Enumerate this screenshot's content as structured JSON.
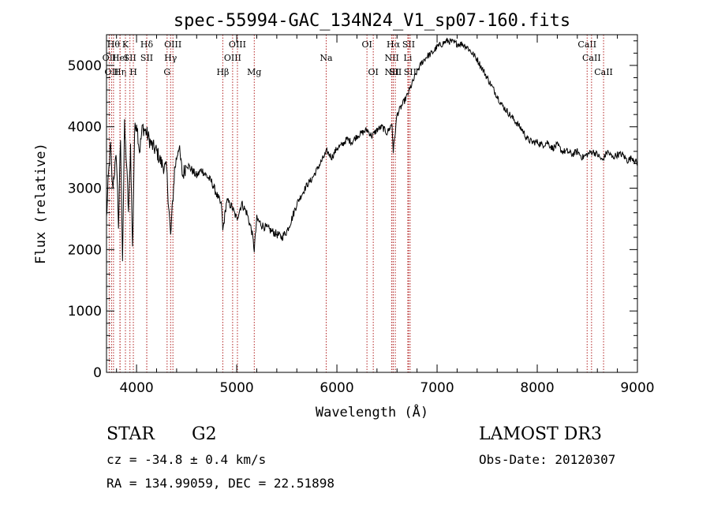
{
  "chart_data": {
    "type": "line",
    "title": "spec-55994-GAC_134N24_V1_sp07-160.fits",
    "xlabel": "Wavelength (Å)",
    "ylabel": "Flux (relative)",
    "xlim": [
      3700,
      9000
    ],
    "ylim": [
      0,
      5500
    ],
    "xticks": [
      4000,
      5000,
      6000,
      7000,
      8000,
      9000
    ],
    "yticks": [
      0,
      1000,
      2000,
      3000,
      4000,
      5000
    ],
    "grid": false,
    "series": [
      {
        "name": "flux",
        "color": "#000000",
        "x": [
          3700,
          3720,
          3740,
          3760,
          3780,
          3800,
          3820,
          3840,
          3860,
          3880,
          3900,
          3920,
          3940,
          3960,
          3980,
          4000,
          4030,
          4060,
          4100,
          4150,
          4200,
          4250,
          4300,
          4340,
          4380,
          4420,
          4460,
          4500,
          4550,
          4600,
          4650,
          4700,
          4750,
          4800,
          4850,
          4861,
          4900,
          4950,
          5000,
          5050,
          5100,
          5150,
          5175,
          5200,
          5250,
          5300,
          5350,
          5400,
          5450,
          5500,
          5550,
          5600,
          5650,
          5700,
          5750,
          5800,
          5850,
          5900,
          5950,
          6000,
          6050,
          6100,
          6150,
          6200,
          6250,
          6300,
          6350,
          6400,
          6450,
          6500,
          6550,
          6563,
          6600,
          6650,
          6700,
          6750,
          6800,
          6850,
          6900,
          6950,
          7000,
          7050,
          7100,
          7150,
          7200,
          7250,
          7300,
          7350,
          7400,
          7450,
          7500,
          7550,
          7600,
          7650,
          7700,
          7750,
          7800,
          7850,
          7900,
          7950,
          8000,
          8050,
          8100,
          8150,
          8200,
          8250,
          8300,
          8350,
          8400,
          8450,
          8500,
          8550,
          8600,
          8650,
          8700,
          8750,
          8800,
          8850,
          8900,
          8950,
          9000
        ],
        "y": [
          2500,
          3200,
          3700,
          3000,
          3300,
          3500,
          2400,
          3800,
          1900,
          4000,
          3400,
          2600,
          3700,
          2000,
          3900,
          4100,
          3600,
          4000,
          3900,
          3700,
          3600,
          3400,
          3300,
          2200,
          3300,
          3700,
          3200,
          3400,
          3300,
          3200,
          3300,
          3200,
          3100,
          2900,
          2700,
          2300,
          2800,
          2700,
          2500,
          2750,
          2600,
          2300,
          2000,
          2500,
          2400,
          2350,
          2300,
          2250,
          2200,
          2300,
          2500,
          2750,
          2900,
          3050,
          3150,
          3300,
          3450,
          3600,
          3500,
          3650,
          3700,
          3800,
          3750,
          3850,
          3900,
          3950,
          3850,
          3950,
          4000,
          3900,
          4050,
          3600,
          4200,
          4350,
          4500,
          4700,
          4900,
          5050,
          5150,
          5200,
          5300,
          5350,
          5400,
          5380,
          5350,
          5350,
          5300,
          5200,
          5100,
          4950,
          4800,
          4650,
          4500,
          4350,
          4250,
          4150,
          4050,
          3950,
          3800,
          3750,
          3750,
          3700,
          3750,
          3650,
          3700,
          3600,
          3600,
          3550,
          3600,
          3500,
          3550,
          3600,
          3550,
          3450,
          3600,
          3500,
          3550,
          3550,
          3450,
          3500,
          3400
        ]
      }
    ],
    "lines": [
      {
        "wavelength": 3727,
        "label": "OII",
        "row": 2
      },
      {
        "wavelength": 3750,
        "label": "OII",
        "row": 3
      },
      {
        "wavelength": 3770,
        "label": "Hθ",
        "row": 1
      },
      {
        "wavelength": 3835,
        "label": "Hη",
        "row": 3
      },
      {
        "wavelength": 3835,
        "label": "HeI",
        "row": 2
      },
      {
        "wavelength": 3889,
        "label": "K",
        "row": 1
      },
      {
        "wavelength": 3934,
        "label": "SII",
        "row": 2
      },
      {
        "wavelength": 3968,
        "label": "H",
        "row": 3
      },
      {
        "wavelength": 4102,
        "label": "Hδ",
        "row": 1
      },
      {
        "wavelength": 4102,
        "label": "SII",
        "row": 2
      },
      {
        "wavelength": 4305,
        "label": "G",
        "row": 3
      },
      {
        "wavelength": 4340,
        "label": "Hγ",
        "row": 2
      },
      {
        "wavelength": 4363,
        "label": "OIII",
        "row": 1
      },
      {
        "wavelength": 4861,
        "label": "Hβ",
        "row": 3
      },
      {
        "wavelength": 4959,
        "label": "OIII",
        "row": 2
      },
      {
        "wavelength": 5007,
        "label": "OIII",
        "row": 1
      },
      {
        "wavelength": 5175,
        "label": "Mg",
        "row": 3
      },
      {
        "wavelength": 5893,
        "label": "Na",
        "row": 2
      },
      {
        "wavelength": 6300,
        "label": "OI",
        "row": 1
      },
      {
        "wavelength": 6363,
        "label": "OI",
        "row": 3
      },
      {
        "wavelength": 6548,
        "label": "NII",
        "row": 2
      },
      {
        "wavelength": 6548,
        "label": "NII",
        "row": 3
      },
      {
        "wavelength": 6563,
        "label": "Hα",
        "row": 1
      },
      {
        "wavelength": 6583,
        "label": "SII",
        "row": 3
      },
      {
        "wavelength": 6716,
        "label": "SII",
        "row": 1
      },
      {
        "wavelength": 6708,
        "label": "Li",
        "row": 2
      },
      {
        "wavelength": 6731,
        "label": "SII",
        "row": 3
      },
      {
        "wavelength": 8498,
        "label": "CaII",
        "row": 1
      },
      {
        "wavelength": 8542,
        "label": "CaII",
        "row": 2
      },
      {
        "wavelength": 8662,
        "label": "CaII",
        "row": 3
      }
    ]
  },
  "info": {
    "class_label": "STAR",
    "subclass": "G2",
    "survey": "LAMOST DR3",
    "cz": "cz = -34.8 ± 0.4 km/s",
    "obs_date": "Obs-Date: 20120307",
    "coords": "RA = 134.99059, DEC =  22.51898"
  },
  "colors": {
    "line_marker": "#b22222",
    "spectrum": "#000000",
    "axis": "#000000"
  }
}
